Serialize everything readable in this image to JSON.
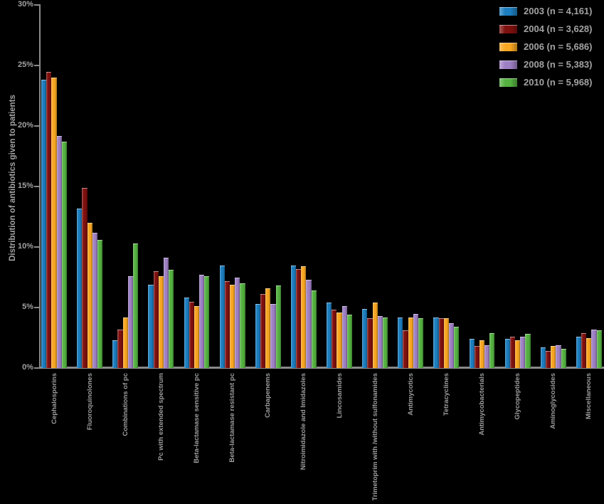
{
  "colors": {
    "background": "#000000",
    "axis": "#8a8a8a",
    "text": "#a2a2a2",
    "series_2003": "#1c7dbe",
    "series_2004": "#7e100e",
    "series_2006": "#f7a621",
    "series_2008": "#9d7fc3",
    "series_2010": "#54b140"
  },
  "chart_data": {
    "type": "bar",
    "title": "",
    "xlabel": "",
    "ylabel": "Distribution of antibiotics given to patients",
    "ylim": [
      0,
      30
    ],
    "yticks": [
      0,
      5,
      10,
      15,
      20,
      25,
      30
    ],
    "ytick_suffix": "%",
    "grid": false,
    "legend_position": "top-right",
    "categories": [
      "Cephalosporins",
      "Fluoroquinolones",
      "Combinations of pc",
      "Pc with extended spectrum",
      "Beta-lactamase sensitive pc",
      "Beta-lactamase resistant pc",
      "Carbapenems",
      "Nitroimidazole and Imidazoles",
      "Lincosamides",
      "Trimetoprim with /without sulfonamides",
      "Antimycotics",
      "Tetracyclines",
      "Antimycobacterials",
      "Glycopeptides",
      "Aminoglycosides",
      "Miscellaneous"
    ],
    "series": [
      {
        "name": "2003",
        "legend_label": "2003 (n = 4,161)",
        "color": "#1c7dbe",
        "values": [
          23.8,
          13.2,
          2.3,
          6.9,
          5.8,
          8.5,
          5.3,
          8.5,
          5.4,
          4.9,
          4.2,
          4.2,
          2.4,
          2.4,
          1.7,
          2.6
        ]
      },
      {
        "name": "2004",
        "legend_label": "2004 (n = 3,628)",
        "color": "#7e100e",
        "values": [
          24.5,
          14.9,
          3.2,
          8.0,
          5.5,
          7.2,
          6.1,
          8.2,
          4.8,
          4.1,
          3.1,
          4.1,
          1.8,
          2.6,
          1.4,
          2.9
        ]
      },
      {
        "name": "2006",
        "legend_label": "2006 (n = 5,686)",
        "color": "#f7a621",
        "values": [
          24.0,
          12.0,
          4.2,
          7.6,
          5.1,
          6.9,
          6.6,
          8.4,
          4.6,
          5.4,
          4.2,
          4.1,
          2.3,
          2.3,
          1.8,
          2.5
        ]
      },
      {
        "name": "2008",
        "legend_label": "2008 (n = 5,383)",
        "color": "#9d7fc3",
        "values": [
          19.2,
          11.2,
          7.6,
          9.1,
          7.7,
          7.5,
          5.3,
          7.3,
          5.1,
          4.3,
          4.5,
          3.7,
          1.9,
          2.6,
          1.9,
          3.2
        ]
      },
      {
        "name": "2010",
        "legend_label": "2010 (n = 5,968)",
        "color": "#54b140",
        "values": [
          18.7,
          10.6,
          10.3,
          8.1,
          7.6,
          7.0,
          6.8,
          6.4,
          4.4,
          4.2,
          4.1,
          3.4,
          2.9,
          2.8,
          1.6,
          3.1
        ]
      }
    ]
  }
}
